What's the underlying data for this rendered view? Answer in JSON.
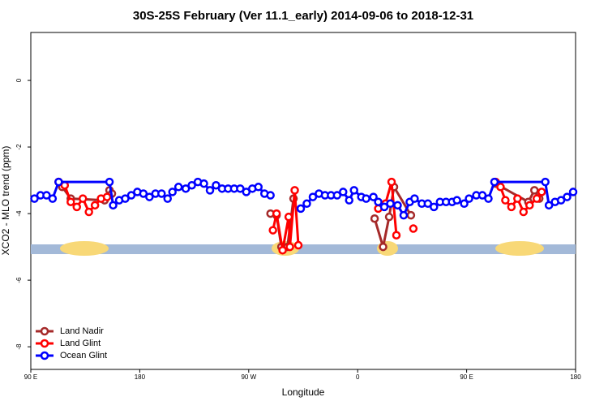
{
  "chart_data": {
    "type": "line",
    "title": "30S-25S February (Ver 11.1_early)   2014-09-06 to 2018-12-31",
    "x_label": "Longitude",
    "y_label": "XCO2 - MLO trend (ppm)",
    "xlim": [
      90,
      540
    ],
    "ylim": [
      -8.68,
      1.44
    ],
    "xticks": [
      {
        "value": 90,
        "label": "90 E"
      },
      {
        "value": 180,
        "label": "180"
      },
      {
        "value": 270,
        "label": "90 W"
      },
      {
        "value": 360,
        "label": "0"
      },
      {
        "value": 450,
        "label": "90 E"
      },
      {
        "value": 540,
        "label": "180"
      }
    ],
    "yticks": [
      -8,
      -6,
      -4,
      -2,
      0
    ],
    "legend": "bottom-left",
    "series": [
      {
        "name": "Land Nadir",
        "color": "#a52a2a",
        "x": [
          113,
          116,
          123,
          151,
          155,
          157,
          null,
          288,
          293,
          297,
          302,
          307,
          null,
          374,
          381,
          386,
          390,
          404,
          null,
          474,
          501,
          506,
          510
        ],
        "values": [
          -3.05,
          -3.2,
          -3.55,
          -3.6,
          -3.3,
          -3.4,
          null,
          -4.0,
          -4.05,
          -5.0,
          -5.0,
          -3.55,
          null,
          -4.15,
          -5.0,
          -4.1,
          -3.2,
          -4.05,
          null,
          -3.1,
          -3.65,
          -3.3,
          -3.55
        ]
      },
      {
        "name": "Land Glint",
        "color": "#ff0000",
        "x": [
          113,
          118,
          123,
          128,
          133,
          138,
          143,
          148,
          153,
          null,
          290,
          293,
          298,
          303,
          304,
          308,
          311,
          null,
          377,
          383,
          388,
          392,
          null,
          406,
          null,
          474,
          478,
          482,
          487,
          492,
          497,
          502,
          508,
          512
        ],
        "values": [
          -3.05,
          -3.15,
          -3.65,
          -3.8,
          -3.55,
          -3.95,
          -3.75,
          -3.55,
          -3.5,
          null,
          -4.5,
          -4.0,
          -5.1,
          -4.1,
          -5.0,
          -3.3,
          -4.95,
          null,
          -3.85,
          -3.7,
          -3.05,
          -4.65,
          null,
          -4.45,
          null,
          -3.05,
          -3.2,
          -3.6,
          -3.8,
          -3.55,
          -3.95,
          -3.75,
          -3.55,
          -3.35
        ]
      },
      {
        "name": "Ocean Glint",
        "color": "#0000ff",
        "x": [
          93,
          98,
          103,
          108,
          113,
          155,
          158,
          163,
          168,
          173,
          178,
          183,
          188,
          193,
          198,
          203,
          207,
          212,
          218,
          223,
          228,
          233,
          238,
          243,
          248,
          253,
          258,
          263,
          268,
          273,
          278,
          283,
          288,
          null,
          313,
          318,
          323,
          328,
          333,
          338,
          343,
          348,
          353,
          357,
          363,
          367,
          373,
          377,
          382,
          387,
          393,
          398,
          403,
          407,
          413,
          418,
          423,
          428,
          433,
          438,
          442,
          448,
          452,
          458,
          463,
          468,
          473,
          515,
          518,
          523,
          528,
          533,
          538
        ],
        "values": [
          -3.55,
          -3.45,
          -3.45,
          -3.55,
          -3.05,
          -3.05,
          -3.75,
          -3.6,
          -3.55,
          -3.45,
          -3.35,
          -3.4,
          -3.5,
          -3.4,
          -3.4,
          -3.55,
          -3.35,
          -3.2,
          -3.25,
          -3.15,
          -3.05,
          -3.1,
          -3.3,
          -3.15,
          -3.25,
          -3.25,
          -3.25,
          -3.25,
          -3.35,
          -3.25,
          -3.2,
          -3.4,
          -3.45,
          null,
          -3.85,
          -3.7,
          -3.5,
          -3.4,
          -3.45,
          -3.45,
          -3.45,
          -3.35,
          -3.6,
          -3.3,
          -3.5,
          -3.55,
          -3.5,
          -3.65,
          -3.8,
          -3.7,
          -3.75,
          -4.05,
          -3.65,
          -3.55,
          -3.7,
          -3.7,
          -3.8,
          -3.65,
          -3.65,
          -3.65,
          -3.6,
          -3.7,
          -3.55,
          -3.45,
          -3.45,
          -3.55,
          -3.05,
          -3.05,
          -3.75,
          -3.65,
          -3.6,
          -3.5,
          -3.35
        ]
      }
    ]
  }
}
